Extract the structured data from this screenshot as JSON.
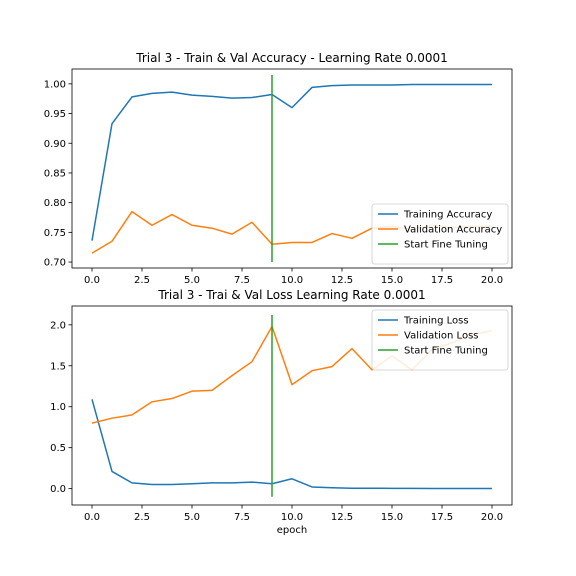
{
  "chart_data": [
    {
      "type": "line",
      "title": "Trial 3 - Train & Val Accuracy - Learning Rate 0.0001",
      "xlabel": "",
      "ylabel": "",
      "xlim": [
        -1,
        21
      ],
      "ylim": [
        0.69,
        1.025
      ],
      "xticks": [
        0.0,
        2.5,
        5.0,
        7.5,
        10.0,
        12.5,
        15.0,
        17.5,
        20.0
      ],
      "xtick_labels": [
        "0.0",
        "2.5",
        "5.0",
        "7.5",
        "10.0",
        "12.5",
        "15.0",
        "17.5",
        "20.0"
      ],
      "yticks": [
        0.7,
        0.75,
        0.8,
        0.85,
        0.9,
        0.95,
        1.0
      ],
      "ytick_labels": [
        "0.70",
        "0.75",
        "0.80",
        "0.85",
        "0.90",
        "0.95",
        "1.00"
      ],
      "grid": false,
      "legend_position": "lower-right",
      "x": [
        0,
        1,
        2,
        3,
        4,
        5,
        6,
        7,
        8,
        9,
        10,
        11,
        12,
        13,
        14,
        15,
        16,
        17,
        18,
        19,
        20
      ],
      "series": [
        {
          "name": "Training Accuracy",
          "color": "#1f77b4",
          "values": [
            0.736,
            0.933,
            0.978,
            0.984,
            0.986,
            0.981,
            0.979,
            0.976,
            0.977,
            0.982,
            0.96,
            0.994,
            0.997,
            0.998,
            0.998,
            0.998,
            0.999,
            0.999,
            0.999,
            0.999,
            0.999
          ]
        },
        {
          "name": "Validation Accuracy",
          "color": "#ff7f0e",
          "values": [
            0.715,
            0.735,
            0.785,
            0.762,
            0.78,
            0.762,
            0.757,
            0.747,
            0.767,
            0.73,
            0.733,
            0.733,
            0.748,
            0.74,
            0.757,
            0.76,
            0.755,
            0.762,
            0.758,
            0.76,
            0.76
          ]
        },
        {
          "name": "Start Fine Tuning",
          "color": "#2ca02c",
          "kind": "vline",
          "x": 9,
          "y_range": [
            0.7,
            1.015
          ]
        }
      ]
    },
    {
      "type": "line",
      "title": "Trial 3 - Trai & Val Loss Learning Rate 0.0001",
      "xlabel": "epoch",
      "ylabel": "",
      "xlim": [
        -1,
        21
      ],
      "ylim": [
        -0.2,
        2.23
      ],
      "xticks": [
        0.0,
        2.5,
        5.0,
        7.5,
        10.0,
        12.5,
        15.0,
        17.5,
        20.0
      ],
      "xtick_labels": [
        "0.0",
        "2.5",
        "5.0",
        "7.5",
        "10.0",
        "12.5",
        "15.0",
        "17.5",
        "20.0"
      ],
      "yticks": [
        0.0,
        0.5,
        1.0,
        1.5,
        2.0
      ],
      "ytick_labels": [
        "0.0",
        "0.5",
        "1.0",
        "1.5",
        "2.0"
      ],
      "grid": false,
      "legend_position": "upper-right",
      "x": [
        0,
        1,
        2,
        3,
        4,
        5,
        6,
        7,
        8,
        9,
        10,
        11,
        12,
        13,
        14,
        15,
        16,
        17,
        18,
        19,
        20
      ],
      "series": [
        {
          "name": "Training Loss",
          "color": "#1f77b4",
          "values": [
            1.09,
            0.21,
            0.07,
            0.05,
            0.05,
            0.06,
            0.07,
            0.07,
            0.08,
            0.06,
            0.12,
            0.02,
            0.01,
            0.005,
            0.005,
            0.003,
            0.003,
            0.002,
            0.002,
            0.001,
            0.001
          ]
        },
        {
          "name": "Validation Loss",
          "color": "#ff7f0e",
          "values": [
            0.8,
            0.86,
            0.9,
            1.06,
            1.1,
            1.19,
            1.2,
            1.38,
            1.55,
            1.98,
            1.27,
            1.44,
            1.49,
            1.71,
            1.45,
            1.62,
            1.45,
            1.7,
            1.78,
            1.88,
            1.93
          ]
        },
        {
          "name": "Start Fine Tuning",
          "color": "#2ca02c",
          "kind": "vline",
          "x": 9,
          "y_range": [
            -0.1,
            2.12
          ]
        }
      ]
    }
  ]
}
